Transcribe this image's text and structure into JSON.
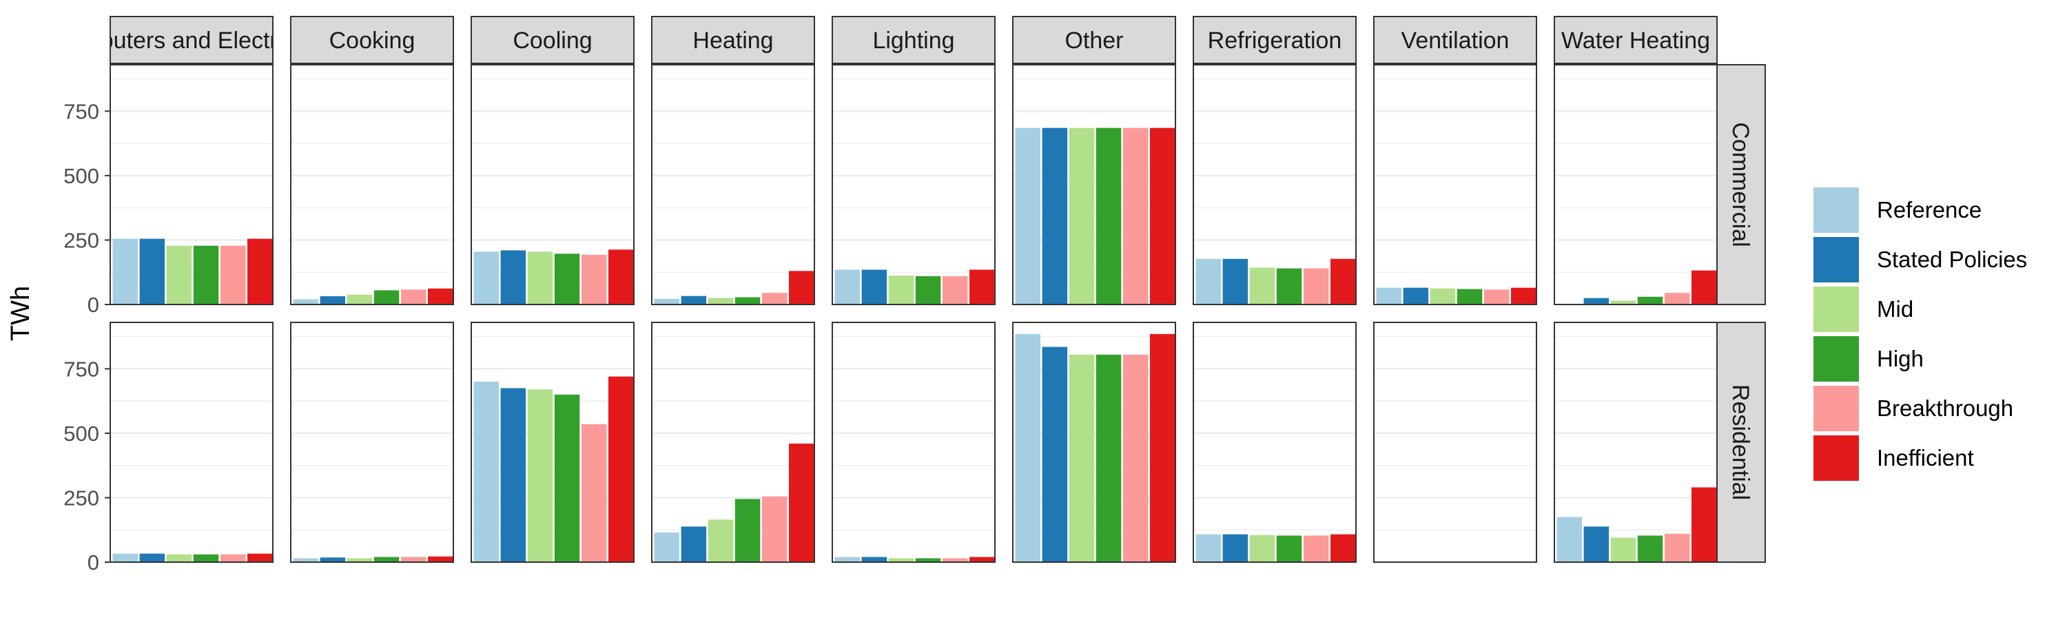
{
  "chart_data": {
    "type": "bar",
    "ylabel": "TWh",
    "ylim": [
      0,
      930
    ],
    "yticks": [
      0,
      250,
      500,
      750
    ],
    "grid": true,
    "legend_position": "right",
    "columns": [
      "Computers and Electronics",
      "Cooking",
      "Cooling",
      "Heating",
      "Lighting",
      "Other",
      "Refrigeration",
      "Ventilation",
      "Water Heating"
    ],
    "rows": [
      "Commercial",
      "Residential"
    ],
    "series": [
      {
        "name": "Reference",
        "color": "#a6cee3"
      },
      {
        "name": "Stated Policies",
        "color": "#1f78b4"
      },
      {
        "name": "Mid",
        "color": "#b2df8a"
      },
      {
        "name": "High",
        "color": "#33a02c"
      },
      {
        "name": "Breakthrough",
        "color": "#fb9a99"
      },
      {
        "name": "Inefficient",
        "color": "#e31a1c"
      }
    ],
    "values": {
      "Commercial": [
        [
          255,
          255,
          228,
          228,
          228,
          255
        ],
        [
          20,
          32,
          38,
          55,
          58,
          62
        ],
        [
          205,
          210,
          205,
          197,
          193,
          213
        ],
        [
          22,
          33,
          25,
          28,
          45,
          130
        ],
        [
          135,
          135,
          112,
          110,
          110,
          135
        ],
        [
          685,
          685,
          685,
          685,
          685,
          685
        ],
        [
          177,
          177,
          143,
          140,
          140,
          177
        ],
        [
          65,
          65,
          62,
          60,
          58,
          65
        ],
        [
          0,
          25,
          15,
          30,
          45,
          132
        ]
      ],
      "Residential": [
        [
          33,
          33,
          30,
          30,
          30,
          33
        ],
        [
          15,
          18,
          15,
          20,
          20,
          22
        ],
        [
          700,
          675,
          670,
          650,
          535,
          720
        ],
        [
          115,
          138,
          165,
          245,
          255,
          460
        ],
        [
          20,
          20,
          15,
          15,
          15,
          20
        ],
        [
          885,
          835,
          805,
          805,
          805,
          885
        ],
        [
          108,
          108,
          105,
          103,
          103,
          108
        ],
        [
          0,
          0,
          0,
          0,
          0,
          0
        ],
        [
          175,
          138,
          95,
          103,
          110,
          290
        ]
      ]
    }
  }
}
